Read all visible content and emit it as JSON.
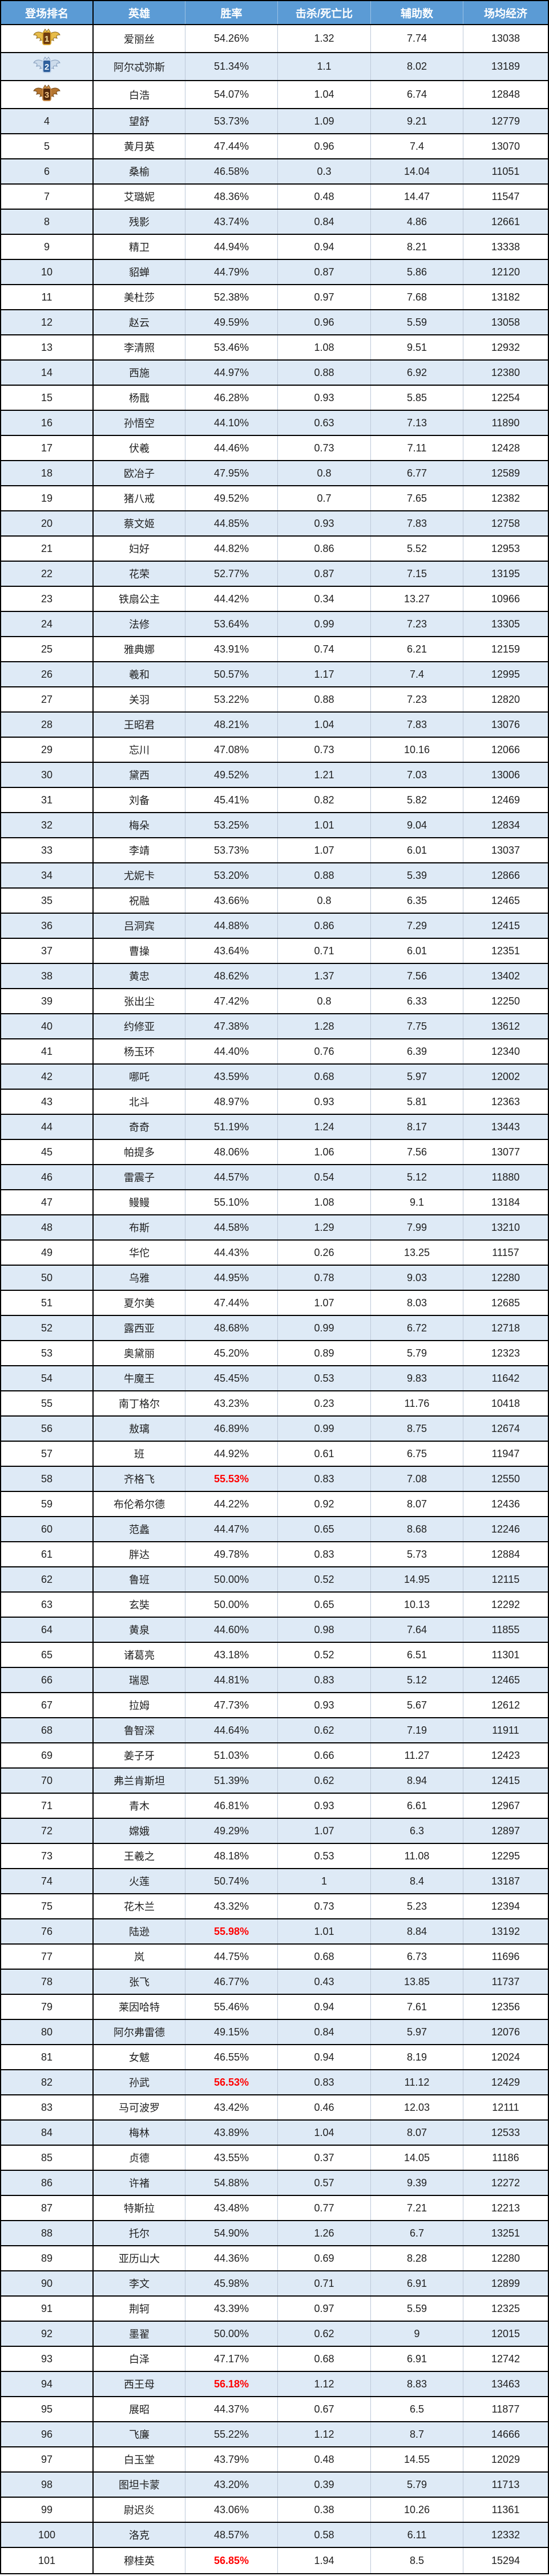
{
  "table": {
    "columns": [
      {
        "key": "rank",
        "label": "登场排名"
      },
      {
        "key": "hero",
        "label": "英雄"
      },
      {
        "key": "win_rate",
        "label": "胜率"
      },
      {
        "key": "kd",
        "label": "击杀/死亡比"
      },
      {
        "key": "assists",
        "label": "辅助数"
      },
      {
        "key": "economy",
        "label": "场均经济"
      }
    ],
    "medal_ranks": [
      1,
      2,
      3
    ],
    "medal_icons": [
      "gold-medal-icon",
      "silver-medal-icon",
      "bronze-medal-icon"
    ],
    "red_win_rate_ranks": [
      58,
      76,
      82,
      94,
      101
    ],
    "colors": {
      "header_bg": "#5b9bd5",
      "header_text": "#ffffff",
      "stripe_bg": "#deeaf6",
      "row_bg": "#ffffff",
      "grid_line": "#000000",
      "inner_line": "#bcc8d8",
      "text": "#1f1f1f",
      "highlight_red": "#ff0000",
      "gold": "#e0ac3a",
      "silver": "#c9d8ea",
      "bronze": "#a96a2c"
    },
    "rows": [
      [
        1,
        "爱丽丝",
        "54.26%",
        "1.32",
        "7.74",
        "13038"
      ],
      [
        2,
        "阿尔忒弥斯",
        "51.34%",
        "1.1",
        "8.02",
        "13189"
      ],
      [
        3,
        "白浩",
        "54.07%",
        "1.04",
        "6.74",
        "12848"
      ],
      [
        4,
        "望舒",
        "53.73%",
        "1.09",
        "9.21",
        "12779"
      ],
      [
        5,
        "黄月英",
        "47.44%",
        "0.96",
        "7.4",
        "13070"
      ],
      [
        6,
        "桑榆",
        "46.58%",
        "0.3",
        "14.04",
        "11051"
      ],
      [
        7,
        "艾璐妮",
        "48.36%",
        "0.48",
        "14.47",
        "11547"
      ],
      [
        8,
        "残影",
        "43.74%",
        "0.84",
        "4.86",
        "12661"
      ],
      [
        9,
        "精卫",
        "44.94%",
        "0.94",
        "8.21",
        "13338"
      ],
      [
        10,
        "貂蝉",
        "44.79%",
        "0.87",
        "5.86",
        "12120"
      ],
      [
        11,
        "美杜莎",
        "52.38%",
        "0.97",
        "7.68",
        "13182"
      ],
      [
        12,
        "赵云",
        "49.59%",
        "0.96",
        "5.59",
        "13058"
      ],
      [
        13,
        "李清照",
        "53.46%",
        "1.08",
        "9.51",
        "12932"
      ],
      [
        14,
        "西施",
        "44.97%",
        "0.88",
        "6.92",
        "12380"
      ],
      [
        15,
        "杨戬",
        "46.28%",
        "0.93",
        "5.85",
        "12254"
      ],
      [
        16,
        "孙悟空",
        "44.10%",
        "0.63",
        "7.13",
        "11890"
      ],
      [
        17,
        "伏羲",
        "44.46%",
        "0.73",
        "7.11",
        "12428"
      ],
      [
        18,
        "欧冶子",
        "47.95%",
        "0.8",
        "6.77",
        "12589"
      ],
      [
        19,
        "猪八戒",
        "49.52%",
        "0.7",
        "7.65",
        "12382"
      ],
      [
        20,
        "蔡文姬",
        "44.85%",
        "0.93",
        "7.83",
        "12758"
      ],
      [
        21,
        "妇好",
        "44.82%",
        "0.86",
        "5.52",
        "12953"
      ],
      [
        22,
        "花荣",
        "52.77%",
        "0.87",
        "7.15",
        "13195"
      ],
      [
        23,
        "铁扇公主",
        "44.42%",
        "0.34",
        "13.27",
        "10966"
      ],
      [
        24,
        "法修",
        "53.64%",
        "0.99",
        "7.23",
        "13305"
      ],
      [
        25,
        "雅典娜",
        "43.91%",
        "0.74",
        "6.21",
        "12159"
      ],
      [
        26,
        "羲和",
        "50.57%",
        "1.17",
        "7.4",
        "12995"
      ],
      [
        27,
        "关羽",
        "53.22%",
        "0.88",
        "7.23",
        "12820"
      ],
      [
        28,
        "王昭君",
        "48.21%",
        "1.04",
        "7.83",
        "13076"
      ],
      [
        29,
        "忘川",
        "47.08%",
        "0.73",
        "10.16",
        "12066"
      ],
      [
        30,
        "黛西",
        "49.52%",
        "1.21",
        "7.03",
        "13006"
      ],
      [
        31,
        "刘备",
        "45.41%",
        "0.82",
        "5.82",
        "12469"
      ],
      [
        32,
        "梅朵",
        "53.25%",
        "1.01",
        "9.04",
        "12834"
      ],
      [
        33,
        "李靖",
        "53.73%",
        "1.07",
        "6.01",
        "13037"
      ],
      [
        34,
        "尤妮卡",
        "53.20%",
        "0.88",
        "5.39",
        "12866"
      ],
      [
        35,
        "祝融",
        "43.66%",
        "0.8",
        "6.35",
        "12465"
      ],
      [
        36,
        "吕洞宾",
        "44.88%",
        "0.86",
        "7.29",
        "12415"
      ],
      [
        37,
        "曹操",
        "43.64%",
        "0.71",
        "6.01",
        "12351"
      ],
      [
        38,
        "黄忠",
        "48.62%",
        "1.37",
        "7.56",
        "13402"
      ],
      [
        39,
        "张出尘",
        "47.42%",
        "0.8",
        "6.33",
        "12250"
      ],
      [
        40,
        "约修亚",
        "47.38%",
        "1.28",
        "7.75",
        "13612"
      ],
      [
        41,
        "杨玉环",
        "44.40%",
        "0.76",
        "6.39",
        "12340"
      ],
      [
        42,
        "哪吒",
        "43.59%",
        "0.68",
        "5.97",
        "12002"
      ],
      [
        43,
        "北斗",
        "48.97%",
        "0.93",
        "5.81",
        "12363"
      ],
      [
        44,
        "奇奇",
        "51.19%",
        "1.24",
        "8.17",
        "13443"
      ],
      [
        45,
        "帕提多",
        "48.06%",
        "1.06",
        "7.56",
        "13077"
      ],
      [
        46,
        "雷震子",
        "44.57%",
        "0.54",
        "5.12",
        "11880"
      ],
      [
        47,
        "鳗鳗",
        "55.10%",
        "1.08",
        "9.1",
        "13184"
      ],
      [
        48,
        "布斯",
        "44.58%",
        "1.29",
        "7.99",
        "13210"
      ],
      [
        49,
        "华佗",
        "44.43%",
        "0.26",
        "13.25",
        "11157"
      ],
      [
        50,
        "乌雅",
        "44.95%",
        "0.78",
        "9.03",
        "12280"
      ],
      [
        51,
        "夏尔美",
        "47.44%",
        "1.07",
        "8.03",
        "12685"
      ],
      [
        52,
        "露西亚",
        "48.68%",
        "0.99",
        "6.72",
        "12718"
      ],
      [
        53,
        "奥黛丽",
        "45.20%",
        "0.89",
        "5.79",
        "12323"
      ],
      [
        54,
        "牛魔王",
        "45.45%",
        "0.53",
        "9.83",
        "11642"
      ],
      [
        55,
        "南丁格尔",
        "43.23%",
        "0.23",
        "11.76",
        "10418"
      ],
      [
        56,
        "敖璃",
        "46.89%",
        "0.99",
        "8.75",
        "12674"
      ],
      [
        57,
        "班",
        "44.92%",
        "0.61",
        "6.75",
        "11947"
      ],
      [
        58,
        "齐格飞",
        "55.53%",
        "0.83",
        "7.08",
        "12550"
      ],
      [
        59,
        "布伦希尔德",
        "44.22%",
        "0.92",
        "8.07",
        "12436"
      ],
      [
        60,
        "范蠡",
        "44.47%",
        "0.65",
        "8.68",
        "12246"
      ],
      [
        61,
        "胖达",
        "49.78%",
        "0.83",
        "5.73",
        "12884"
      ],
      [
        62,
        "鲁班",
        "50.00%",
        "0.52",
        "14.95",
        "12115"
      ],
      [
        63,
        "玄奘",
        "50.00%",
        "0.65",
        "10.13",
        "12292"
      ],
      [
        64,
        "黄泉",
        "44.60%",
        "0.98",
        "7.64",
        "11855"
      ],
      [
        65,
        "诸葛亮",
        "43.18%",
        "0.52",
        "6.51",
        "11301"
      ],
      [
        66,
        "瑞恩",
        "44.81%",
        "0.83",
        "5.12",
        "12465"
      ],
      [
        67,
        "拉姆",
        "47.73%",
        "0.93",
        "5.67",
        "12612"
      ],
      [
        68,
        "鲁智深",
        "44.64%",
        "0.62",
        "7.19",
        "11911"
      ],
      [
        69,
        "姜子牙",
        "51.03%",
        "0.66",
        "11.27",
        "12423"
      ],
      [
        70,
        "弗兰肯斯坦",
        "51.39%",
        "0.62",
        "8.94",
        "12415"
      ],
      [
        71,
        "青木",
        "46.81%",
        "0.93",
        "6.61",
        "12967"
      ],
      [
        72,
        "嫦娥",
        "49.29%",
        "1.07",
        "6.3",
        "12897"
      ],
      [
        73,
        "王羲之",
        "48.18%",
        "0.53",
        "11.08",
        "12295"
      ],
      [
        74,
        "火莲",
        "50.74%",
        "1",
        "8.4",
        "13187"
      ],
      [
        75,
        "花木兰",
        "43.32%",
        "0.73",
        "5.23",
        "12394"
      ],
      [
        76,
        "陆逊",
        "55.98%",
        "1.01",
        "8.84",
        "13192"
      ],
      [
        77,
        "岚",
        "44.75%",
        "0.68",
        "6.73",
        "11696"
      ],
      [
        78,
        "张飞",
        "46.77%",
        "0.43",
        "13.85",
        "11737"
      ],
      [
        79,
        "莱因哈特",
        "55.46%",
        "0.94",
        "7.61",
        "12356"
      ],
      [
        80,
        "阿尔弗雷德",
        "49.15%",
        "0.84",
        "5.97",
        "12076"
      ],
      [
        81,
        "女魃",
        "46.55%",
        "0.94",
        "8.19",
        "12024"
      ],
      [
        82,
        "孙武",
        "56.53%",
        "0.83",
        "11.12",
        "12429"
      ],
      [
        83,
        "马可波罗",
        "43.42%",
        "0.46",
        "12.03",
        "12111"
      ],
      [
        84,
        "梅林",
        "43.89%",
        "1.04",
        "8.07",
        "12533"
      ],
      [
        85,
        "贞德",
        "43.55%",
        "0.37",
        "14.05",
        "11186"
      ],
      [
        86,
        "许褚",
        "54.88%",
        "0.57",
        "9.39",
        "12272"
      ],
      [
        87,
        "特斯拉",
        "43.48%",
        "0.77",
        "7.21",
        "12213"
      ],
      [
        88,
        "托尔",
        "54.90%",
        "1.26",
        "6.7",
        "13251"
      ],
      [
        89,
        "亚历山大",
        "44.36%",
        "0.69",
        "8.28",
        "12280"
      ],
      [
        90,
        "李文",
        "45.98%",
        "0.71",
        "6.91",
        "12899"
      ],
      [
        91,
        "荆轲",
        "43.39%",
        "0.97",
        "5.59",
        "12325"
      ],
      [
        92,
        "墨翟",
        "50.00%",
        "0.62",
        "9",
        "12015"
      ],
      [
        93,
        "白泽",
        "47.17%",
        "0.68",
        "6.91",
        "12742"
      ],
      [
        94,
        "西王母",
        "56.18%",
        "1.12",
        "8.83",
        "13463"
      ],
      [
        95,
        "展昭",
        "44.37%",
        "0.67",
        "6.5",
        "11877"
      ],
      [
        96,
        "飞廉",
        "55.22%",
        "1.12",
        "8.7",
        "14666"
      ],
      [
        97,
        "白玉堂",
        "43.79%",
        "0.48",
        "14.55",
        "12029"
      ],
      [
        98,
        "图坦卡蒙",
        "43.20%",
        "0.39",
        "5.79",
        "11713"
      ],
      [
        99,
        "尉迟炎",
        "43.06%",
        "0.38",
        "10.26",
        "11361"
      ],
      [
        100,
        "洛克",
        "48.57%",
        "0.58",
        "6.11",
        "12332"
      ],
      [
        101,
        "穆桂英",
        "56.85%",
        "1.94",
        "8.5",
        "15294"
      ]
    ]
  }
}
